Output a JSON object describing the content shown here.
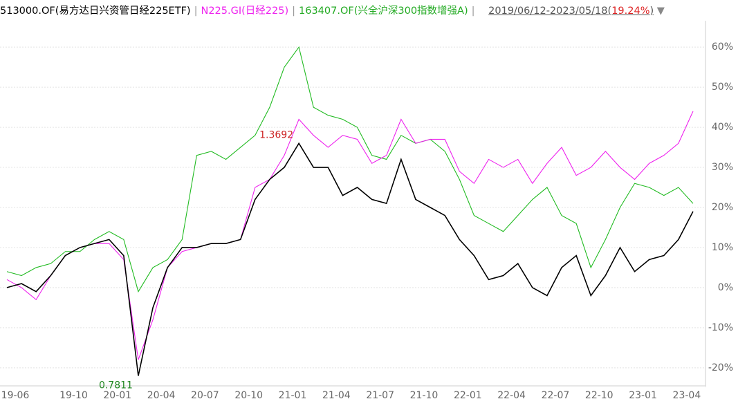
{
  "chart_data": {
    "type": "line",
    "date_range": "2019/06/12-2023/05/18",
    "period_return": "19.24%",
    "categories": [
      "19-06",
      null,
      null,
      null,
      "19-10",
      null,
      null,
      "20-01",
      null,
      null,
      "20-04",
      null,
      null,
      "20-07",
      null,
      null,
      "20-10",
      null,
      null,
      "21-01",
      null,
      null,
      "21-04",
      null,
      null,
      "21-07",
      null,
      null,
      "21-10",
      null,
      null,
      "22-01",
      null,
      null,
      "22-04",
      null,
      null,
      "22-07",
      null,
      null,
      "22-10",
      null,
      null,
      "23-01",
      null,
      null,
      "23-04",
      null
    ],
    "series": [
      {
        "name": "513000.OF(易方达日兴资管日经225ETF)",
        "color": "#000000",
        "values": [
          0,
          1,
          -1,
          3,
          8,
          10,
          11,
          12,
          8,
          -22,
          -5,
          5,
          10,
          10,
          11,
          11,
          12,
          22,
          27,
          30,
          36,
          30,
          30,
          23,
          25,
          22,
          21,
          32,
          22,
          20,
          18,
          12,
          8,
          2,
          3,
          6,
          0,
          -2,
          5,
          8,
          -2,
          3,
          10,
          4,
          7,
          8,
          12,
          19
        ]
      },
      {
        "name": "N225.GI(日经225)",
        "color": "#ee22ee",
        "values": [
          2,
          0,
          -3,
          3,
          8,
          10,
          11,
          11,
          7,
          -18,
          -8,
          5,
          9,
          10,
          11,
          11,
          12,
          25,
          27,
          33,
          42,
          38,
          35,
          38,
          37,
          31,
          33,
          42,
          36,
          37,
          37,
          29,
          26,
          32,
          30,
          32,
          26,
          31,
          35,
          28,
          30,
          34,
          30,
          27,
          31,
          33,
          36,
          44
        ]
      },
      {
        "name": "163407.OF(兴全沪深300指数增强A)",
        "color": "#22bb22",
        "values": [
          4,
          3,
          5,
          6,
          9,
          9,
          12,
          14,
          12,
          -1,
          5,
          7,
          12,
          33,
          34,
          32,
          35,
          38,
          45,
          55,
          60,
          45,
          43,
          42,
          40,
          33,
          32,
          38,
          36,
          37,
          34,
          27,
          18,
          16,
          14,
          18,
          22,
          25,
          18,
          16,
          5,
          12,
          20,
          26,
          25,
          23,
          25,
          21
        ]
      }
    ],
    "annotations": [
      {
        "text": "1.3692",
        "color": "#cc2222"
      },
      {
        "text": "0.7811",
        "color": "#228822"
      }
    ],
    "ylim": [
      -24,
      64
    ],
    "yticks": [
      {
        "value": -20,
        "label": "-20%"
      },
      {
        "value": -10,
        "label": "-10%"
      },
      {
        "value": 0,
        "label": "0%"
      },
      {
        "value": 10,
        "label": "10%"
      },
      {
        "value": 20,
        "label": "20%"
      },
      {
        "value": 30,
        "label": "30%"
      },
      {
        "value": 40,
        "label": "40%"
      },
      {
        "value": 50,
        "label": "50%"
      },
      {
        "value": 60,
        "label": "60%"
      }
    ],
    "grid": true
  }
}
